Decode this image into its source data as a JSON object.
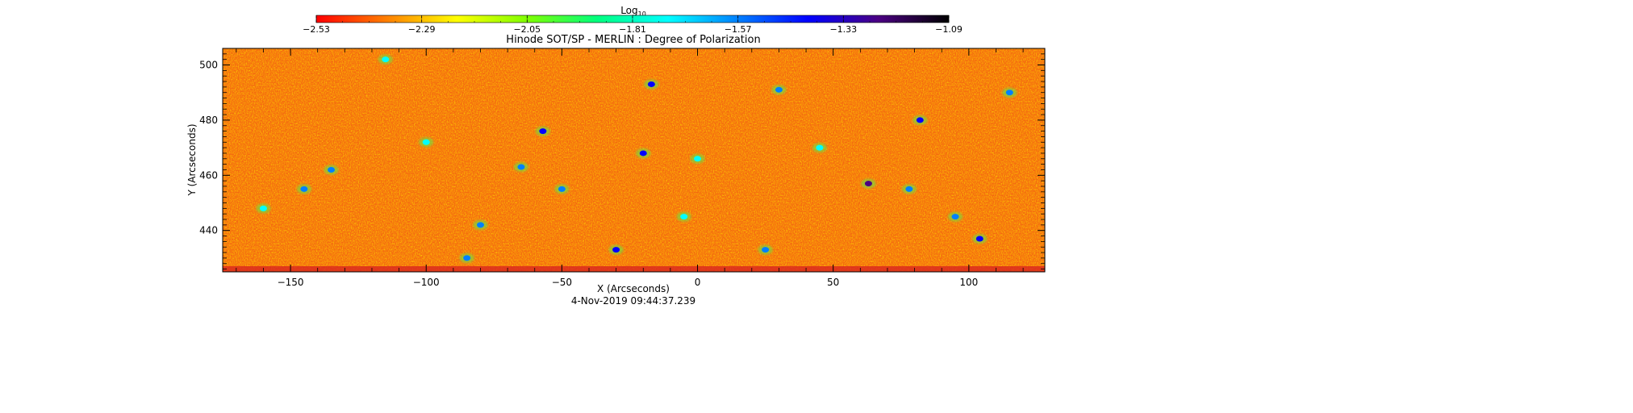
{
  "chart_data": {
    "type": "heatmap",
    "title": "Hinode SOT/SP - MERLIN : Degree of Polarization",
    "xlabel": "X (Arcseconds)",
    "ylabel": "Y (Arcseconds)",
    "timestamp": "4-Nov-2019 09:44:37.239",
    "xlim": [
      -175,
      128
    ],
    "ylim": [
      425,
      506
    ],
    "x_ticks": [
      -150,
      -100,
      -50,
      0,
      50,
      100
    ],
    "x_tick_labels": [
      "−150",
      "−100",
      "−50",
      "0",
      "50",
      "100"
    ],
    "y_ticks": [
      440,
      460,
      480,
      500
    ],
    "y_tick_labels": [
      "440",
      "460",
      "480",
      "500"
    ],
    "colorbar": {
      "label_base": "Log",
      "label_subscript": "10",
      "range": [
        -2.53,
        -1.09
      ],
      "ticks": [
        -2.53,
        -2.29,
        -2.05,
        -1.81,
        -1.57,
        -1.33,
        -1.09
      ],
      "tick_labels": [
        "−2.53",
        "−2.29",
        "−2.05",
        "−1.81",
        "−1.57",
        "−1.33",
        "−1.09"
      ],
      "colormap": [
        "#ff0000",
        "#ff7f00",
        "#ffff00",
        "#7fff00",
        "#00ff7f",
        "#00ffff",
        "#0080ff",
        "#0000ff",
        "#4b0082",
        "#000000"
      ]
    },
    "background_level": -2.4,
    "features": [
      {
        "x": -57,
        "y": 476,
        "value": -1.4
      },
      {
        "x": 82,
        "y": 480,
        "value": -1.35
      },
      {
        "x": 63,
        "y": 457,
        "value": -1.3
      },
      {
        "x": 104,
        "y": 437,
        "value": -1.35
      },
      {
        "x": -20,
        "y": 468,
        "value": -1.4
      },
      {
        "x": -17,
        "y": 493,
        "value": -1.45
      },
      {
        "x": -65,
        "y": 463,
        "value": -1.5
      },
      {
        "x": -30,
        "y": 433,
        "value": -1.45
      },
      {
        "x": 25,
        "y": 433,
        "value": -1.5
      },
      {
        "x": -145,
        "y": 455,
        "value": -1.6
      },
      {
        "x": -135,
        "y": 462,
        "value": -1.6
      },
      {
        "x": -80,
        "y": 442,
        "value": -1.6
      },
      {
        "x": -100,
        "y": 472,
        "value": -1.7
      },
      {
        "x": 30,
        "y": 491,
        "value": -1.6
      },
      {
        "x": 78,
        "y": 455,
        "value": -1.55
      },
      {
        "x": -50,
        "y": 455,
        "value": -1.55
      },
      {
        "x": 115,
        "y": 490,
        "value": -1.6
      },
      {
        "x": -160,
        "y": 448,
        "value": -1.7
      },
      {
        "x": -115,
        "y": 502,
        "value": -1.7
      },
      {
        "x": 0,
        "y": 466,
        "value": -1.75
      },
      {
        "x": 95,
        "y": 445,
        "value": -1.6
      },
      {
        "x": -5,
        "y": 445,
        "value": -1.7
      },
      {
        "x": 45,
        "y": 470,
        "value": -1.75
      },
      {
        "x": -85,
        "y": 430,
        "value": -1.6
      }
    ]
  }
}
